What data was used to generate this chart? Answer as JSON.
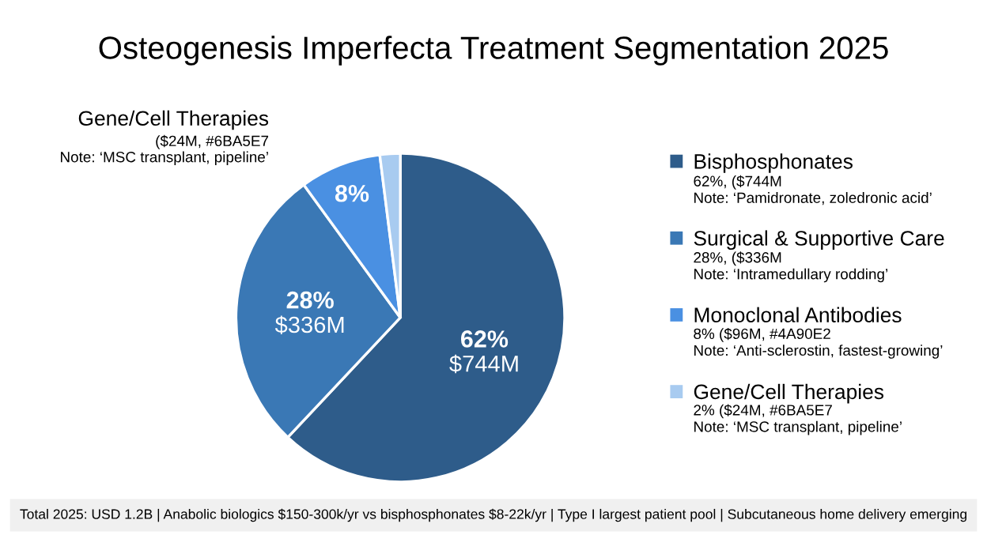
{
  "chart_data": {
    "type": "pie",
    "title": "Osteogenesis Imperfecta Treatment Segmentation 2025",
    "categories": [
      "Bisphosphonates",
      "Surgical & Supportive Care",
      "Monoclonal Antibodies",
      "Gene/Cell Therapies"
    ],
    "values": [
      62,
      28,
      8,
      2
    ],
    "colors": [
      "#2e5c8a",
      "#3a78b5",
      "#4a90e2",
      "#a8cbf0"
    ],
    "value_labels": [
      "62%\n$744M",
      "28%\n$336M",
      "8%",
      null
    ],
    "legend": "right",
    "annotations": [
      "Gene/Cell Therapies\n($24M, #6BA5E7\nNote: ‘MSC transplant, pipeline’",
      "62%, ($744M\nNote: ‘Pamidronate, zoledronic acid’",
      "28%, ($336M\nNote: ‘Intramedullary rodding’",
      "8% ($96M, #4A90E2\nNote: ‘Anti-sclerostin, fastest-growing’",
      "2% ($24M, #6BA5E7\nNote: ‘MSC transplant, pipeline’",
      "Total 2025: USD 1.2B | Anabolic biologics $150-300k/yr vs bisphosphonates $8-22k/yr | Type I largest patient pool | Subcutaneous home delivery emerging"
    ]
  }
}
